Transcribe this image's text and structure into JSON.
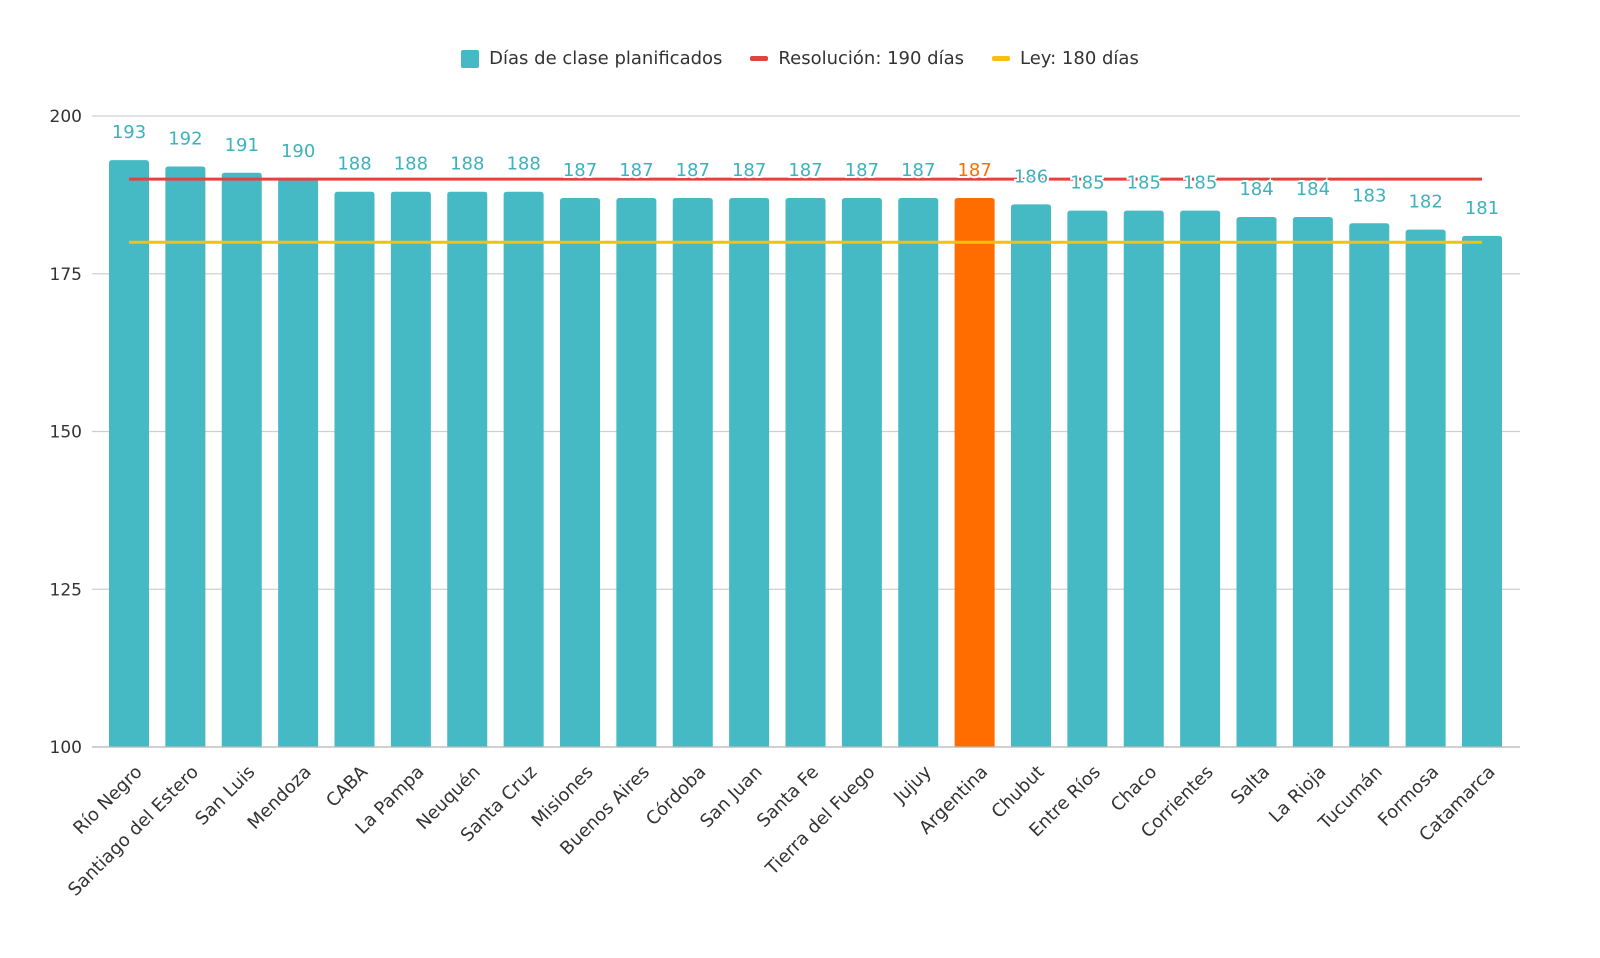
{
  "chart_data": {
    "type": "bar",
    "title": "",
    "xlabel": "",
    "ylabel": "",
    "ylim": [
      100,
      200
    ],
    "yticks": [
      100,
      125,
      150,
      175,
      200
    ],
    "grid": true,
    "legend_position": "top",
    "categories": [
      "Río Negro",
      "Santiago del Estero",
      "San Luis",
      "Mendoza",
      "CABA",
      "La Pampa",
      "Neuquén",
      "Santa Cruz",
      "Misiones",
      "Buenos Aires",
      "Córdoba",
      "San Juan",
      "Santa Fe",
      "Tierra del Fuego",
      "Jujuy",
      "Argentina",
      "Chubut",
      "Entre Ríos",
      "Chaco",
      "Corrientes",
      "Salta",
      "La Rioja",
      "Tucumán",
      "Formosa",
      "Catamarca"
    ],
    "series": [
      {
        "name": "Días de clase planificados",
        "type": "bar",
        "color": "#45B9C4",
        "values": [
          193,
          192,
          191,
          190,
          188,
          188,
          188,
          188,
          187,
          187,
          187,
          187,
          187,
          187,
          187,
          187,
          186,
          185,
          185,
          185,
          184,
          184,
          183,
          182,
          181
        ],
        "highlight": {
          "category": "Argentina",
          "color": "#FF6D00"
        }
      },
      {
        "name": "Resolución: 190 días",
        "type": "line",
        "color": "#E0443D",
        "value": 190
      },
      {
        "name": "Ley: 180 días",
        "type": "line",
        "color": "#F4C20D",
        "value": 180
      }
    ]
  }
}
